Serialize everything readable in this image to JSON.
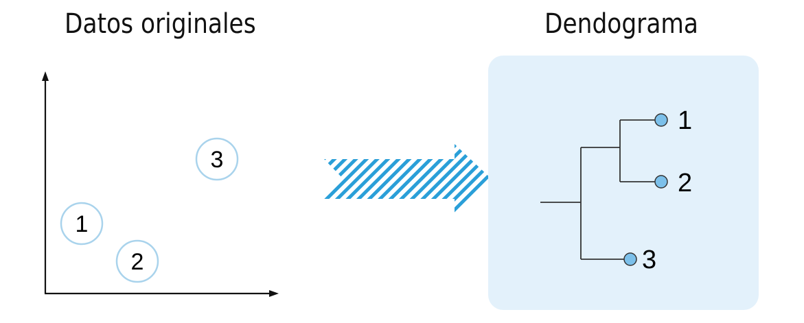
{
  "titles": {
    "left": "Datos originales",
    "right": "Dendograma"
  },
  "scatter": {
    "points": [
      {
        "label": "1"
      },
      {
        "label": "2"
      },
      {
        "label": "3"
      }
    ]
  },
  "dendrogram": {
    "leaves": [
      {
        "label": "1"
      },
      {
        "label": "2"
      },
      {
        "label": "3"
      }
    ]
  },
  "colors": {
    "panel_bg": "#e3f1fb",
    "circle_stroke": "#a9d3ec",
    "leaf_fill": "#7cc0ea",
    "arrow_stripe": "#2a9fd8",
    "line": "#222222"
  }
}
